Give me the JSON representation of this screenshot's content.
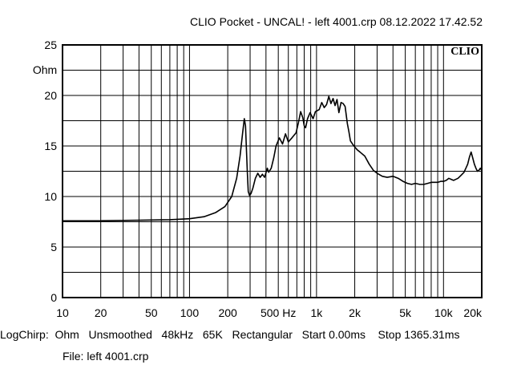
{
  "header": {
    "title": "CLIO Pocket - UNCAL! - left 4001.crp 08.12.2022 17.42.52"
  },
  "footer": {
    "settings": "LogChirp:  Ohm   Unsmoothed   48kHz   65K   Rectangular   Start 0.00ms    Stop 1365.31ms",
    "file": "File: left 4001.crp"
  },
  "chart_data": {
    "type": "line",
    "title": "",
    "xlabel": "",
    "ylabel": "Ohm",
    "logo": "CLIO",
    "xscale": "log",
    "xlim": [
      10,
      20000
    ],
    "ylim": [
      0,
      25
    ],
    "grid": true,
    "x_tick_labels": [
      {
        "value": 10,
        "label": "10"
      },
      {
        "value": 20,
        "label": "20"
      },
      {
        "value": 50,
        "label": "50"
      },
      {
        "value": 100,
        "label": "100"
      },
      {
        "value": 200,
        "label": "200"
      },
      {
        "value": 500,
        "label": "500 Hz"
      },
      {
        "value": 1000,
        "label": "1k"
      },
      {
        "value": 2000,
        "label": "2k"
      },
      {
        "value": 5000,
        "label": "5k"
      },
      {
        "value": 10000,
        "label": "10k"
      },
      {
        "value": 20000,
        "label": "20k"
      }
    ],
    "y_ticks": [
      0,
      5,
      10,
      15,
      20,
      25
    ],
    "colors": {
      "trace": "#000000",
      "grid": "#000000",
      "background": "#ffffff"
    },
    "series": [
      {
        "x": [
          10,
          20,
          40,
          70,
          100,
          130,
          160,
          190,
          215,
          235,
          250,
          262,
          270,
          276,
          280,
          285,
          290,
          297,
          305,
          315,
          330,
          345,
          360,
          375,
          390,
          410,
          420,
          440,
          460,
          480,
          510,
          540,
          570,
          600,
          640,
          690,
          720,
          750,
          780,
          800,
          820,
          850,
          890,
          940,
          980,
          1050,
          1100,
          1150,
          1200,
          1250,
          1300,
          1350,
          1400,
          1450,
          1500,
          1560,
          1620,
          1680,
          1750,
          1800,
          1850,
          1920,
          2000,
          2100,
          2200,
          2400,
          2600,
          2800,
          3000,
          3300,
          3600,
          4000,
          4400,
          4800,
          5200,
          5600,
          6000,
          6500,
          7000,
          7500,
          8000,
          8500,
          9000,
          9500,
          10000,
          10500,
          11000,
          11500,
          12000,
          12500,
          13000,
          13500,
          14000,
          14500,
          15000,
          15500,
          16000,
          16500,
          17000,
          17500,
          18000,
          18500,
          19000,
          19500,
          20000
        ],
        "y": [
          7.6,
          7.6,
          7.65,
          7.7,
          7.8,
          8.0,
          8.4,
          9.0,
          10.0,
          11.8,
          14.0,
          16.3,
          17.7,
          17.0,
          15.0,
          12.5,
          10.5,
          10.1,
          10.3,
          10.8,
          11.8,
          12.3,
          11.9,
          12.2,
          11.9,
          12.8,
          12.4,
          12.8,
          13.8,
          15.0,
          15.8,
          15.2,
          16.2,
          15.4,
          15.8,
          16.3,
          17.3,
          18.4,
          17.8,
          17.0,
          16.8,
          17.7,
          18.3,
          17.7,
          18.4,
          18.6,
          19.3,
          18.8,
          19.1,
          19.9,
          19.2,
          19.7,
          19.0,
          19.6,
          18.3,
          19.3,
          19.2,
          18.9,
          17.2,
          16.4,
          15.5,
          15.2,
          14.9,
          14.6,
          14.4,
          14.0,
          13.2,
          12.6,
          12.3,
          12.0,
          11.9,
          12.0,
          11.8,
          11.5,
          11.3,
          11.2,
          11.3,
          11.2,
          11.2,
          11.3,
          11.4,
          11.4,
          11.4,
          11.5,
          11.5,
          11.6,
          11.8,
          11.7,
          11.6,
          11.7,
          11.8,
          12.0,
          12.2,
          12.4,
          12.8,
          13.2,
          13.9,
          14.4,
          13.8,
          13.2,
          12.8,
          12.5,
          12.6,
          12.8,
          12.6
        ]
      }
    ]
  }
}
